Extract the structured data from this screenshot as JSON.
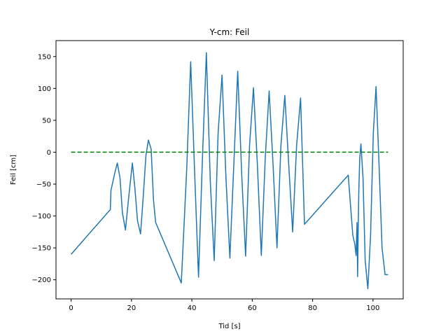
{
  "chart_data": {
    "type": "line",
    "title": "Y-cm: Feil",
    "xlabel": "Tid [s]",
    "ylabel": "Feil [cm]",
    "xlim": [
      -5,
      110
    ],
    "ylim": [
      -230,
      175
    ],
    "xticks": [
      0,
      20,
      40,
      60,
      80,
      100
    ],
    "yticks": [
      -200,
      -150,
      -100,
      -50,
      0,
      50,
      100,
      150
    ],
    "grid": false,
    "series": [
      {
        "color": "#1f77b4",
        "style": "solid",
        "x": [
          0,
          13,
          13.2,
          14.5,
          15.3,
          16.2,
          17.0,
          18.0,
          19.2,
          20.3,
          21.1,
          22.0,
          23.0,
          23.9,
          24.8,
          25.6,
          26.5,
          27.3,
          28.0,
          36.5,
          38.3,
          39.6,
          40.9,
          42.2,
          43.5,
          44.8,
          46.1,
          47.4,
          48.7,
          50.0,
          51.3,
          52.6,
          53.9,
          55.2,
          56.5,
          57.8,
          59.1,
          60.4,
          61.7,
          63.0,
          64.3,
          65.6,
          66.9,
          68.2,
          69.5,
          70.8,
          72.1,
          73.4,
          74.7,
          76.0,
          77.3,
          91.8,
          92.5,
          93.3,
          94.0,
          94.4,
          94.7,
          94.9,
          95.1,
          95.3,
          95.6,
          96.0,
          96.7,
          97.4,
          98.3,
          99.2,
          100.1,
          101.0,
          102.0,
          103.0,
          104.0,
          105.0
        ],
        "y": [
          -160,
          -90,
          -60,
          -32,
          -17,
          -40,
          -95,
          -122,
          -65,
          -17,
          -55,
          -108,
          -128,
          -70,
          -5,
          19,
          5,
          -75,
          -110,
          -205,
          -25,
          142,
          -30,
          -196,
          -10,
          156,
          -45,
          -170,
          30,
          121,
          -40,
          -166,
          -20,
          127,
          -35,
          -163,
          10,
          101,
          -20,
          -162,
          -10,
          96,
          -20,
          -150,
          10,
          89,
          -20,
          -125,
          10,
          85,
          -113,
          -36,
          -80,
          -130,
          -145,
          -162,
          -110,
          -195,
          -120,
          -60,
          -10,
          13,
          -40,
          -170,
          -214,
          -130,
          30,
          103,
          -20,
          -150,
          -192,
          -192
        ]
      },
      {
        "color": "#008000",
        "style": "dashed",
        "x": [
          0,
          105
        ],
        "y": [
          0,
          0
        ]
      }
    ]
  }
}
